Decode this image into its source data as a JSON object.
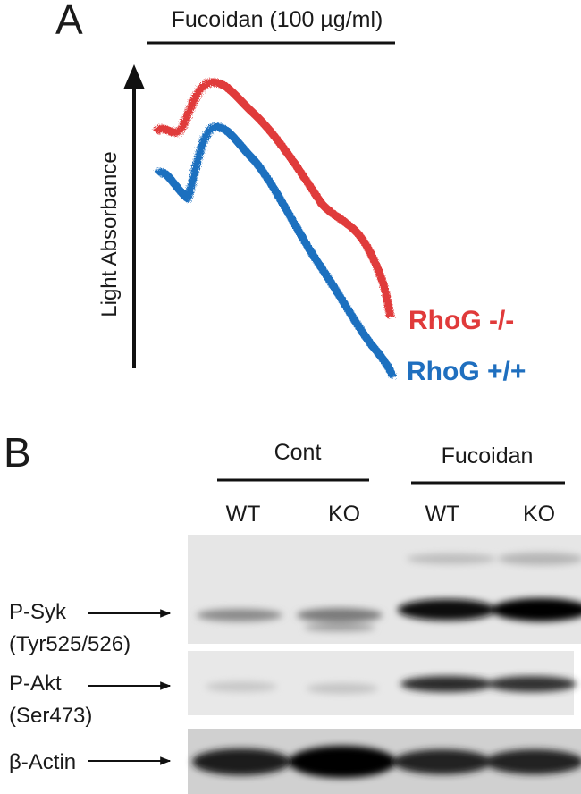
{
  "panel_a": {
    "label": "A",
    "treatment": "Fucoidan (100 µg/ml)",
    "y_axis_label": "Light Absorbance",
    "traces": [
      {
        "name": "RhoG -/-",
        "color": "#e03a3a"
      },
      {
        "name": "RhoG +/+",
        "color": "#1f6fbf"
      }
    ]
  },
  "panel_b": {
    "label": "B",
    "groups": [
      {
        "label": "Cont",
        "lanes": [
          "WT",
          "KO"
        ]
      },
      {
        "label": "Fucoidan",
        "lanes": [
          "WT",
          "KO"
        ]
      }
    ],
    "blots": [
      {
        "label": [
          "P-Syk",
          "(Tyr525/526)"
        ]
      },
      {
        "label": [
          "P-Akt",
          "(Ser473)"
        ]
      },
      {
        "label": [
          "β-Actin"
        ]
      }
    ]
  }
}
